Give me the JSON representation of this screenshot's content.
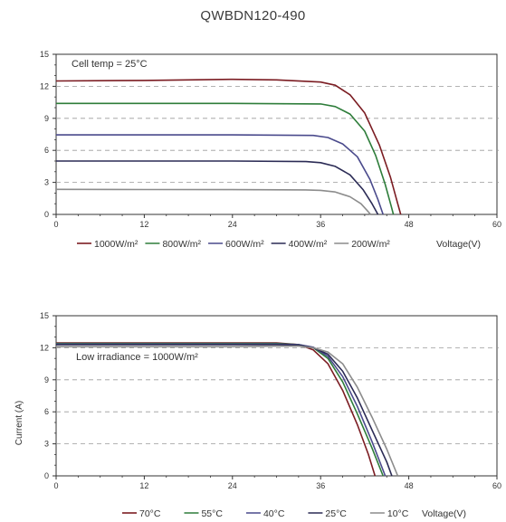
{
  "title": "QWBDN120-490",
  "chart_data": [
    {
      "type": "line",
      "annotation": "Cell temp = 25°C",
      "xlabel": "Voltage(V)",
      "ylabel": "",
      "xlim": [
        0,
        60
      ],
      "ylim": [
        0,
        15
      ],
      "xticks": [
        0,
        12,
        24,
        36,
        48,
        60
      ],
      "yticks": [
        0,
        3,
        6,
        9,
        12,
        15
      ],
      "grid": "horizontal dashed",
      "legend_position": "bottom",
      "series": [
        {
          "name": "1000W/m²",
          "color": "#7b1c22",
          "points": [
            [
              0,
              12.5
            ],
            [
              12,
              12.55
            ],
            [
              24,
              12.65
            ],
            [
              30,
              12.6
            ],
            [
              36,
              12.4
            ],
            [
              38,
              12.1
            ],
            [
              40,
              11.2
            ],
            [
              42,
              9.5
            ],
            [
              44,
              6.5
            ],
            [
              45.5,
              3.5
            ],
            [
              46.5,
              1.0
            ],
            [
              46.9,
              0
            ]
          ]
        },
        {
          "name": "800W/m²",
          "color": "#2e7d3a",
          "points": [
            [
              0,
              10.4
            ],
            [
              12,
              10.4
            ],
            [
              24,
              10.4
            ],
            [
              36,
              10.35
            ],
            [
              38,
              10.1
            ],
            [
              40,
              9.4
            ],
            [
              42,
              7.8
            ],
            [
              43.5,
              5.5
            ],
            [
              44.8,
              2.8
            ],
            [
              45.6,
              0.8
            ],
            [
              45.9,
              0
            ]
          ]
        },
        {
          "name": "600W/m²",
          "color": "#4a4a8c",
          "points": [
            [
              0,
              7.45
            ],
            [
              12,
              7.45
            ],
            [
              24,
              7.45
            ],
            [
              35,
              7.4
            ],
            [
              37,
              7.2
            ],
            [
              39,
              6.6
            ],
            [
              41,
              5.4
            ],
            [
              42.7,
              3.3
            ],
            [
              43.8,
              1.4
            ],
            [
              44.5,
              0
            ]
          ]
        },
        {
          "name": "400W/m²",
          "color": "#2b2b55",
          "points": [
            [
              0,
              5.0
            ],
            [
              12,
              5.0
            ],
            [
              24,
              5.0
            ],
            [
              34,
              4.95
            ],
            [
              36,
              4.85
            ],
            [
              38,
              4.5
            ],
            [
              40,
              3.7
            ],
            [
              41.8,
              2.3
            ],
            [
              43,
              1.0
            ],
            [
              43.8,
              0
            ]
          ]
        },
        {
          "name": "200W/m²",
          "color": "#8c8c8c",
          "points": [
            [
              0,
              2.35
            ],
            [
              12,
              2.33
            ],
            [
              24,
              2.32
            ],
            [
              34,
              2.3
            ],
            [
              36,
              2.25
            ],
            [
              38,
              2.1
            ],
            [
              40,
              1.65
            ],
            [
              41.5,
              1.0
            ],
            [
              42.3,
              0.4
            ],
            [
              42.8,
              0
            ]
          ]
        }
      ]
    },
    {
      "type": "line",
      "annotation": "Low irradiance = 1000W/m²",
      "xlabel": "Voltage(V)",
      "ylabel": "Current (A)",
      "xlim": [
        0,
        60
      ],
      "ylim": [
        0,
        15
      ],
      "xticks": [
        0,
        12,
        24,
        36,
        48,
        60
      ],
      "yticks": [
        0,
        3,
        6,
        9,
        12,
        15
      ],
      "grid": "horizontal dashed",
      "legend_position": "bottom",
      "series": [
        {
          "name": "70°C",
          "color": "#7b1c22",
          "points": [
            [
              0,
              12.45
            ],
            [
              12,
              12.45
            ],
            [
              24,
              12.45
            ],
            [
              30,
              12.45
            ],
            [
              33,
              12.3
            ],
            [
              35,
              11.8
            ],
            [
              37,
              10.5
            ],
            [
              39,
              8.0
            ],
            [
              41,
              4.8
            ],
            [
              42.5,
              2.0
            ],
            [
              43.4,
              0
            ]
          ]
        },
        {
          "name": "55°C",
          "color": "#2e7d3a",
          "points": [
            [
              0,
              12.4
            ],
            [
              12,
              12.4
            ],
            [
              24,
              12.4
            ],
            [
              30,
              12.4
            ],
            [
              33,
              12.3
            ],
            [
              35,
              12.0
            ],
            [
              37,
              11.0
            ],
            [
              39,
              8.8
            ],
            [
              41,
              5.8
            ],
            [
              43,
              2.6
            ],
            [
              44.5,
              0
            ]
          ]
        },
        {
          "name": "40°C",
          "color": "#4a4a8c",
          "points": [
            [
              0,
              12.35
            ],
            [
              12,
              12.35
            ],
            [
              24,
              12.35
            ],
            [
              30,
              12.35
            ],
            [
              33,
              12.3
            ],
            [
              35,
              12.05
            ],
            [
              37,
              11.2
            ],
            [
              39,
              9.3
            ],
            [
              41,
              6.5
            ],
            [
              43,
              3.2
            ],
            [
              44.8,
              0
            ]
          ]
        },
        {
          "name": "25°C",
          "color": "#2b2b55",
          "points": [
            [
              0,
              12.3
            ],
            [
              12,
              12.3
            ],
            [
              24,
              12.3
            ],
            [
              30,
              12.3
            ],
            [
              33,
              12.25
            ],
            [
              35,
              12.0
            ],
            [
              37,
              11.4
            ],
            [
              39,
              9.8
            ],
            [
              41,
              7.3
            ],
            [
              43,
              4.3
            ],
            [
              45,
              1.3
            ],
            [
              45.7,
              0
            ]
          ]
        },
        {
          "name": "10°C",
          "color": "#8c8c8c",
          "points": [
            [
              0,
              12.1
            ],
            [
              12,
              12.1
            ],
            [
              24,
              12.1
            ],
            [
              30,
              12.15
            ],
            [
              33,
              12.15
            ],
            [
              35,
              12.0
            ],
            [
              37,
              11.6
            ],
            [
              39,
              10.5
            ],
            [
              41,
              8.3
            ],
            [
              43,
              5.5
            ],
            [
              45,
              2.5
            ],
            [
              46.5,
              0
            ]
          ]
        }
      ]
    }
  ]
}
